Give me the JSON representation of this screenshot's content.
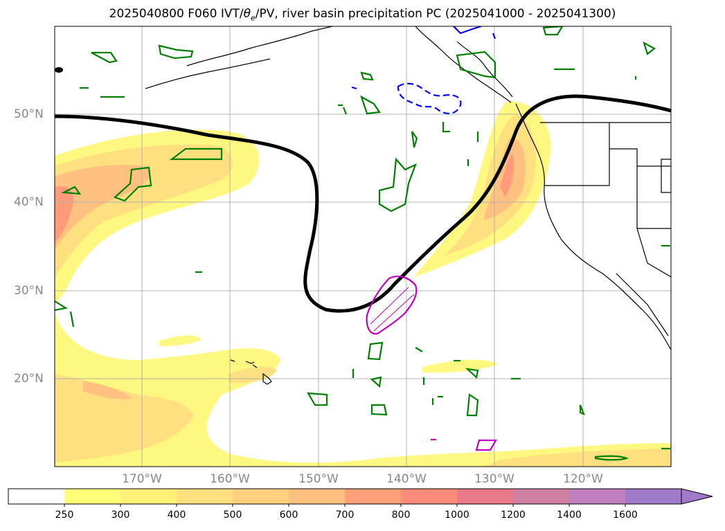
{
  "title_prefix": "2025040800 F060 IVT/",
  "title_theta": "θ",
  "title_theta_sub": "e",
  "title_suffix": "/PV, river basin precipitation PC (2025041000 - 2025041300)",
  "lat_labels": [
    "50°N",
    "40°N",
    "30°N",
    "20°N"
  ],
  "lon_labels": [
    "170°W",
    "160°W",
    "150°W",
    "140°W",
    "130°W",
    "120°W"
  ],
  "colorbar": {
    "ticks": [
      "250",
      "300",
      "400",
      "500",
      "600",
      "700",
      "800",
      "1000",
      "1200",
      "1400",
      "1600"
    ],
    "colors": [
      "#ffffff",
      "#ffff7a",
      "#fff07a",
      "#ffe080",
      "#ffd080",
      "#ffc080",
      "#ffa07a",
      "#ff8c7a",
      "#e87a8a",
      "#d080a0",
      "#c080c0",
      "#a07ac8"
    ]
  },
  "colors": {
    "ivt_light": "#fff880",
    "ivt_mid": "#ffe080",
    "ivt_orange": "#ffc080",
    "ivt_red": "#ff9a7a",
    "pv_contour": "#000000",
    "theta_green": "#008000",
    "precip_blue": "#0000ff",
    "precip_magenta": "#c000c0",
    "grid": "#b0b0b0",
    "coast": "#000000"
  }
}
